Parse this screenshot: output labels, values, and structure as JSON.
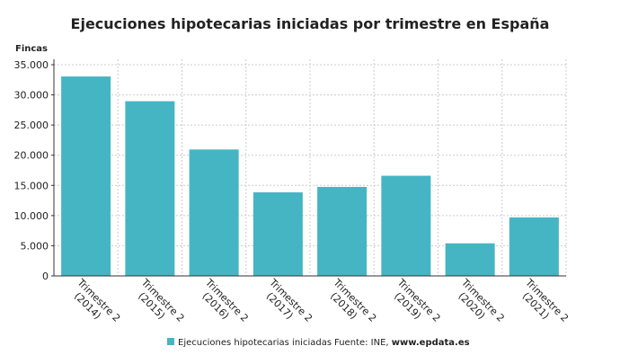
{
  "chart_data": {
    "type": "bar",
    "title": "Ejecuciones hipotecarias iniciadas por trimestre en España",
    "y_label": "Fincas",
    "categories": [
      [
        "Trimestre 2",
        "(2014)"
      ],
      [
        "Trimestre 2",
        "(2015)"
      ],
      [
        "Trimestre 2",
        "(2016)"
      ],
      [
        "Trimestre 2",
        "(2017)"
      ],
      [
        "Trimestre 2",
        "(2018)"
      ],
      [
        "Trimestre 2",
        "(2019)"
      ],
      [
        "Trimestre 2",
        "(2020)"
      ],
      [
        "Trimestre 2",
        "(2021)"
      ]
    ],
    "series": [
      {
        "name": "Ejecuciones hipotecarias iniciadas",
        "color": "#45b5c4",
        "values": [
          33050,
          28950,
          20950,
          13850,
          14750,
          16600,
          5400,
          9700
        ]
      }
    ],
    "ylim": [
      0,
      35000
    ],
    "yticks": [
      0,
      {
        "value": 5000,
        "label": "5.000"
      },
      {
        "value": 10000,
        "label": "10.000"
      },
      {
        "value": 15000,
        "label": "15.000"
      },
      {
        "value": 20000,
        "label": "20.000"
      },
      {
        "value": 25000,
        "label": "25.000"
      },
      {
        "value": 30000,
        "label": "30.000"
      },
      {
        "value": 35000,
        "label": "35.000"
      }
    ],
    "grid": true,
    "source": "Fuente: INE,",
    "source_site": "www.epdata.es"
  }
}
